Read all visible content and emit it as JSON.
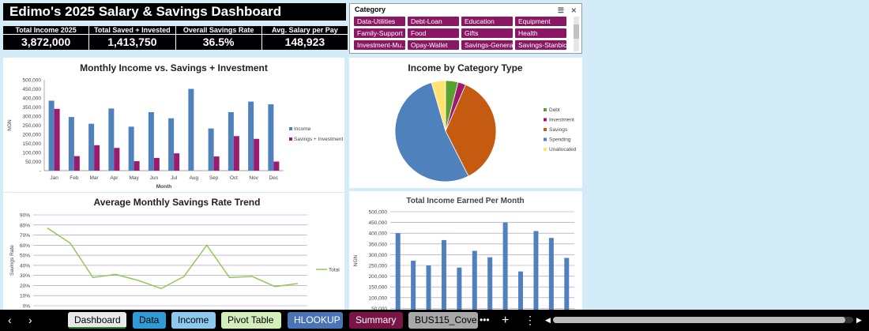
{
  "dashboard": {
    "title": "Edimo's 2025 Salary & Savings Dashboard",
    "kpis": [
      {
        "label": "Total Income 2025",
        "value": "3,872,000"
      },
      {
        "label": "Total Saved + Invested",
        "value": "1,413,750"
      },
      {
        "label": "Overall Savings Rate",
        "value": "36.5%"
      },
      {
        "label": "Avg. Salary per Pay",
        "value": "148,923"
      }
    ]
  },
  "slicer": {
    "title": "Category",
    "items": [
      "Data-Utilities",
      "Debt-Loan",
      "Education",
      "Equipment",
      "Family-Support",
      "Food",
      "Gifts",
      "Health",
      "Investment-Mu...",
      "Opay-Wallet",
      "Savings-General",
      "Savings-Stanbic"
    ]
  },
  "tabs": [
    {
      "label": "Dashboard",
      "color": "#e9e9e9"
    },
    {
      "label": "Data",
      "color": "#2e9bd6"
    },
    {
      "label": "Income",
      "color": "#8dc8ee"
    },
    {
      "label": "Pivot Table",
      "color": "#d4edbb"
    },
    {
      "label": "HLOOKUP",
      "color": "#4a74b6"
    },
    {
      "label": "Summary",
      "color": "#7a1446"
    },
    {
      "label": "BUS115_Cove",
      "color": "#a8a8a8"
    }
  ],
  "chart_data": [
    {
      "type": "bar",
      "title": "Monthly Income vs. Savings + Investment",
      "xlabel": "Month",
      "ylabel": "NGN",
      "categories": [
        "Jan",
        "Feb",
        "Mar",
        "Apr",
        "May",
        "Jun",
        "Jul",
        "Aug",
        "Sep",
        "Oct",
        "Nov",
        "Dec"
      ],
      "series": [
        {
          "name": "Income",
          "color": "#4f81bd",
          "values": [
            385000,
            295000,
            258000,
            342000,
            242000,
            322000,
            288000,
            450000,
            232000,
            322000,
            380000,
            365000
          ]
        },
        {
          "name": "Savings + Investment",
          "color": "#9b1b6e",
          "values": [
            340000,
            80000,
            140000,
            125000,
            52000,
            70000,
            95000,
            0,
            78000,
            190000,
            175000,
            50000
          ]
        }
      ],
      "yticks": [
        "500,000",
        "450,000",
        "400,000",
        "350,000",
        "300,000",
        "250,000",
        "200,000",
        "150,000",
        "100,000",
        "50,000",
        "-"
      ],
      "ylim": [
        0,
        500000
      ],
      "legend": "right"
    },
    {
      "type": "pie",
      "title": "Income by Category Type",
      "slices": [
        {
          "name": "Debt",
          "color": "#5aa02c",
          "value": 4
        },
        {
          "name": "Investment",
          "color": "#a0196e",
          "value": 2.5
        },
        {
          "name": "Savings",
          "color": "#c55a11",
          "value": 36
        },
        {
          "name": "Spending",
          "color": "#4f81bd",
          "value": 53
        },
        {
          "name": "Unallocated",
          "color": "#ffe26f",
          "value": 4.5
        }
      ],
      "legend": "right"
    },
    {
      "type": "line",
      "title": "Average Monthly Savings Rate Trend",
      "ylabel": "Savings Rate",
      "series": [
        {
          "name": "Total",
          "color": "#8cc64b",
          "values": [
            0.77,
            0.62,
            0.28,
            0.31,
            0.25,
            0.17,
            0.29,
            0.6,
            0.28,
            0.29,
            0.19,
            0.22
          ]
        }
      ],
      "yticks": [
        "90%",
        "80%",
        "70%",
        "60%",
        "50%",
        "40%",
        "30%",
        "20%",
        "10%",
        "0%"
      ],
      "ylim": [
        0,
        0.9
      ],
      "legend": "right"
    },
    {
      "type": "bar",
      "title": "Total Income Earned Per Month",
      "ylabel": "NGN",
      "series": [
        {
          "color": "#4f81bd",
          "values": [
            400000,
            272000,
            250000,
            368000,
            240000,
            318000,
            288000,
            450000,
            222000,
            410000,
            378000,
            285000
          ]
        }
      ],
      "yticks": [
        "500,000",
        "450,000",
        "400,000",
        "350,000",
        "300,000",
        "250,000",
        "200,000",
        "150,000",
        "100,000",
        "50,000"
      ],
      "ylim": [
        0,
        500000
      ]
    }
  ]
}
